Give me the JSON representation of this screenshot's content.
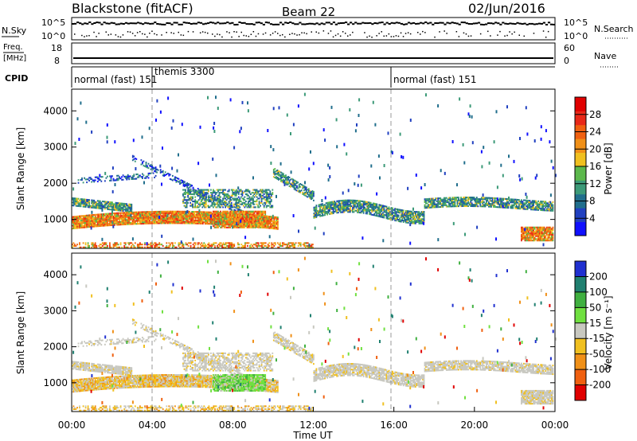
{
  "header": {
    "title": "Blackstone (fitACF)",
    "beam": "Beam 22",
    "date": "02/Jun/2016"
  },
  "nsky_panel": {
    "left_label": "N.Sky",
    "left_ticks": [
      "10^5",
      "10^0"
    ],
    "right_ticks": [
      "10^5",
      "10^0"
    ],
    "right_label": "N.Search"
  },
  "freq_panel": {
    "left_label_top": "Freq.",
    "left_label_unit": "[MHz]",
    "left_ticks": [
      "18",
      "8"
    ],
    "right_ticks": [
      "60",
      "0"
    ],
    "right_label": "Nave"
  },
  "cpid_panel": {
    "label": "CPID",
    "segments": [
      {
        "text": "normal (fast) 151",
        "start_hour": 0
      },
      {
        "text": "themis 3300",
        "start_hour": 4
      },
      {
        "text": "normal (fast) 151",
        "start_hour": 16
      }
    ]
  },
  "chart_data": [
    {
      "type": "heatmap",
      "name": "power",
      "ylabel": "Slant Range [km]",
      "yticks": [
        1000,
        2000,
        3000,
        4000
      ],
      "ylim": [
        200,
        4600
      ],
      "xlim": [
        0,
        24
      ],
      "colorbar_label": "Power [dB]",
      "colorbar_ticks": [
        "4",
        "8",
        "12",
        "16",
        "20",
        "24",
        "28"
      ],
      "colorbar_colors": [
        "#1010ff",
        "#2040c0",
        "#206e8c",
        "#3c9a78",
        "#5cb84c",
        "#f0c020",
        "#f09018",
        "#f06010",
        "#e82818",
        "#e00000"
      ]
    },
    {
      "type": "heatmap",
      "name": "velocity",
      "ylabel": "Slant Range [km]",
      "yticks": [
        1000,
        2000,
        3000,
        4000
      ],
      "ylim": [
        200,
        4600
      ],
      "xlim": [
        0,
        24
      ],
      "xlabel": "Time UT",
      "xticks": [
        "00:00",
        "04:00",
        "08:00",
        "12:00",
        "16:00",
        "20:00",
        "00:00"
      ],
      "colorbar_label": "Velocity [m s⁻¹]",
      "colorbar_ticks": [
        "200",
        "100",
        "50",
        "15",
        "-15",
        "-50",
        "-100",
        "-200"
      ],
      "colorbar_colors": [
        "#2030d0",
        "#208070",
        "#40b040",
        "#70e040",
        "#c8c8c0",
        "#f0c020",
        "#f09018",
        "#f06010",
        "#e00000"
      ]
    }
  ]
}
